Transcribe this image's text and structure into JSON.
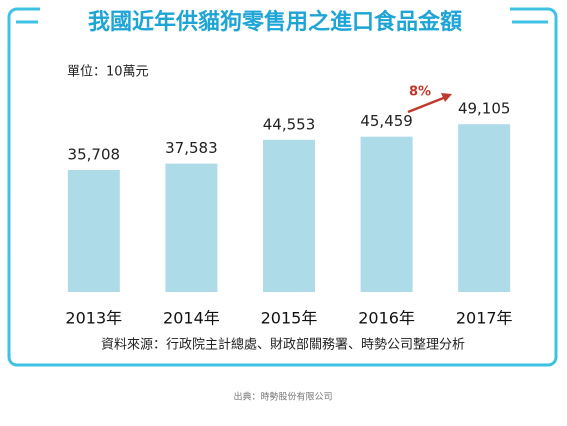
{
  "chart_data": {
    "type": "bar",
    "title": "我國近年供貓狗零售用之進口食品金額",
    "unit": "單位：10萬元",
    "categories": [
      "2013年",
      "2014年",
      "2015年",
      "2016年",
      "2017年"
    ],
    "values": [
      35708,
      37583,
      44553,
      45459,
      49105
    ],
    "value_labels": [
      "35,708",
      "37,583",
      "44,553",
      "45,459",
      "49,105"
    ],
    "color": "#aedbe8",
    "ylim": [
      0,
      60000
    ],
    "annotation": "8%",
    "source": "資料來源：行政院主計總處、財政部關務署、時勢公司整理分析",
    "caption": "出典：時勢股份有限公司"
  }
}
